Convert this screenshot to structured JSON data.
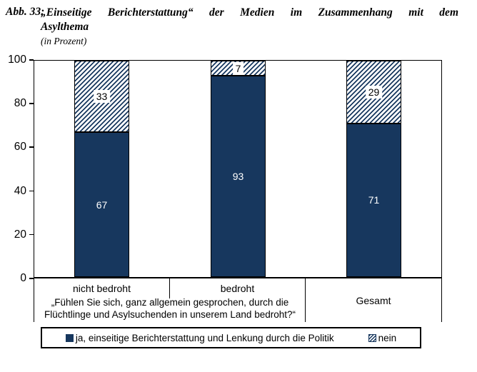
{
  "figure": {
    "label": "Abb. 33:",
    "title_line1": "„Einseitige Berichterstattung“ der Medien im Zusammenhang mit dem",
    "title_line2": "Asylthema",
    "subtitle": "(in Prozent)"
  },
  "chart_data": {
    "type": "bar",
    "stacked": true,
    "unit": "Prozent",
    "title": "„Einseitige Berichterstattung“ der Medien im Zusammenhang mit dem Asylthema (in Prozent)",
    "categories": [
      "nicht bedroht",
      "bedroht",
      "Gesamt"
    ],
    "category_question": "„Fühlen Sie sich, ganz allgemein gesprochen, durch die Flüchtlinge und Asylsuchenden in unserem Land bedroht?“",
    "series": [
      {
        "name": "ja, einseitige Berichterstattung und Lenkung durch die Politik",
        "style": "solid",
        "color": "#17375E",
        "values": [
          67,
          93,
          71
        ]
      },
      {
        "name": "nein",
        "style": "hatched",
        "color": "#17375E",
        "values": [
          33,
          7,
          29
        ]
      }
    ],
    "ylim": [
      0,
      100
    ],
    "y_ticks": [
      0,
      20,
      40,
      60,
      80,
      100
    ],
    "grid": false,
    "legend_position": "bottom"
  },
  "colors": {
    "bar_fill": "#17375E",
    "hatch_line": "#17375E",
    "background": "#FFFFFF",
    "text": "#000000"
  }
}
